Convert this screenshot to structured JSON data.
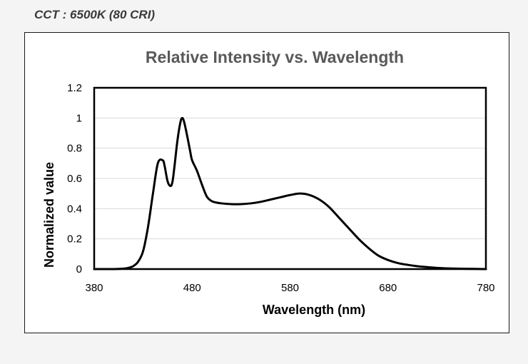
{
  "caption": "CCT : 6500K (80 CRI)",
  "colors": {
    "line": "#000000",
    "grid": "#d9d9d9",
    "title": "#595959",
    "plot_border": "#000000",
    "background": "#ffffff"
  },
  "chart_data": {
    "type": "line",
    "title": "Relative Intensity vs. Wavelength",
    "xlabel": "Wavelength (nm)",
    "ylabel": "Normalized value",
    "xlim": [
      380,
      780
    ],
    "ylim": [
      0,
      1.2
    ],
    "xticks": [
      380,
      480,
      580,
      680,
      780
    ],
    "xtick_labels": [
      "380",
      "480",
      "580",
      "680",
      "780"
    ],
    "yticks": [
      0,
      0.2,
      0.4,
      0.6,
      0.8,
      1,
      1.2
    ],
    "ytick_labels": [
      "0",
      "0.2",
      "0.4",
      "0.6",
      "0.8",
      "1",
      "1.2"
    ],
    "grid": "horizontal",
    "legend": "none",
    "series": [
      {
        "x": [
          380,
          400,
          410,
          415,
          420,
          425,
          430,
          435,
          440,
          445,
          450,
          452,
          455,
          458,
          460,
          462,
          465,
          468,
          470,
          472,
          475,
          478,
          480,
          485,
          490,
          495,
          500,
          505,
          510,
          520,
          530,
          540,
          550,
          560,
          570,
          580,
          590,
          600,
          610,
          620,
          630,
          640,
          650,
          660,
          670,
          680,
          690,
          700,
          710,
          720,
          730,
          740,
          750,
          760,
          770,
          780
        ],
        "y": [
          0,
          0,
          0.003,
          0.008,
          0.02,
          0.05,
          0.12,
          0.28,
          0.5,
          0.7,
          0.72,
          0.68,
          0.58,
          0.55,
          0.58,
          0.68,
          0.85,
          0.97,
          1.0,
          0.97,
          0.88,
          0.78,
          0.72,
          0.65,
          0.56,
          0.48,
          0.45,
          0.44,
          0.435,
          0.43,
          0.43,
          0.435,
          0.445,
          0.46,
          0.475,
          0.49,
          0.5,
          0.49,
          0.46,
          0.41,
          0.34,
          0.27,
          0.2,
          0.14,
          0.09,
          0.06,
          0.04,
          0.028,
          0.019,
          0.013,
          0.008,
          0.005,
          0.003,
          0.002,
          0.001,
          0
        ]
      }
    ]
  }
}
